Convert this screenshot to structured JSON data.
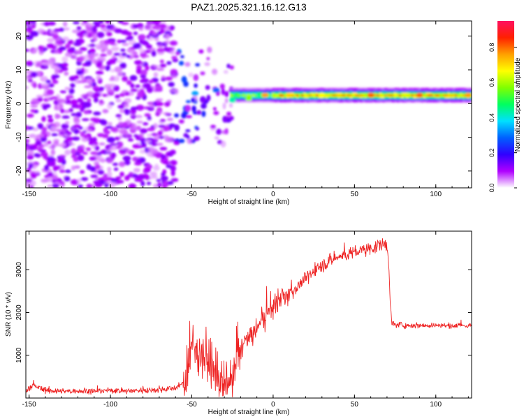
{
  "figure": {
    "title": "PAZ1.2025.321.16.12.G13"
  },
  "chart_data": [
    {
      "type": "heatmap",
      "panel": "spectrogram",
      "xlabel": "Height of straight line (km)",
      "ylabel": "Frequency (Hz)",
      "xlim": [
        -152,
        122
      ],
      "ylim": [
        -25,
        24.5
      ],
      "xticks": [
        -150,
        -100,
        -50,
        0,
        50,
        100
      ],
      "yticks": [
        -20,
        -10,
        0,
        10,
        20
      ],
      "xtick_labels": [
        "-150",
        "-100",
        "-50",
        "0",
        "50",
        "100"
      ],
      "ytick_labels": [
        "-20",
        "-10",
        "0",
        "10",
        "20"
      ],
      "colorbar": {
        "label": "Normalized spectral amplitude",
        "range": [
          0,
          0.95
        ],
        "ticks": [
          0.0,
          0.2,
          0.4,
          0.6,
          0.8
        ],
        "tick_labels": [
          "0.0",
          "0.2",
          "0.4",
          "0.6",
          "0.8"
        ],
        "colormap": [
          "#ffffff",
          "#b000ff",
          "#3000ff",
          "#0060ff",
          "#00e0ff",
          "#00ff60",
          "#80ff00",
          "#ffff00",
          "#ffa000",
          "#ff2000",
          "#ff1060"
        ]
      },
      "features": [
        {
          "name": "noise",
          "x_range": [
            -152,
            -60
          ],
          "freq_range": [
            -25,
            24.5
          ],
          "amplitude": 0.12
        },
        {
          "name": "transition",
          "x_range": [
            -60,
            -25
          ],
          "freq_range": [
            -12,
            16
          ],
          "amplitude": 0.25
        },
        {
          "name": "carrier",
          "x_range": [
            -25,
            122
          ],
          "freq_center": 2.5,
          "freq_width": 1.5,
          "amplitude": 0.9
        }
      ],
      "carrier_points": [
        {
          "x": -48,
          "f": 3,
          "a": 0.35
        },
        {
          "x": -35,
          "f": 4,
          "a": 0.3
        },
        {
          "x": -25,
          "f": 1,
          "a": 0.45
        },
        {
          "x": -15,
          "f": 1.5,
          "a": 0.6
        },
        {
          "x": -5,
          "f": 2.5,
          "a": 0.8
        },
        {
          "x": 10,
          "f": 2.5,
          "a": 0.75
        },
        {
          "x": 30,
          "f": 2.5,
          "a": 0.7
        },
        {
          "x": 60,
          "f": 2.5,
          "a": 0.85
        },
        {
          "x": 90,
          "f": 2.5,
          "a": 0.85
        },
        {
          "x": 120,
          "f": 2.5,
          "a": 0.8
        }
      ]
    },
    {
      "type": "line",
      "panel": "snr",
      "xlabel": "Height of straight line (km)",
      "ylabel": "SNR (10 * v/v)",
      "xlim": [
        -152,
        122
      ],
      "ylim": [
        0,
        3900
      ],
      "xticks": [
        -150,
        -100,
        -50,
        0,
        50,
        100
      ],
      "yticks": [
        1000,
        2000,
        3000
      ],
      "xtick_labels": [
        "-150",
        "-100",
        "-50",
        "0",
        "50",
        "100"
      ],
      "ytick_labels": [
        "1000",
        "2000",
        "3000"
      ],
      "color": "#ee2222",
      "series": [
        {
          "name": "SNR",
          "x": [
            -152,
            -148,
            -140,
            -130,
            -120,
            -110,
            -100,
            -90,
            -80,
            -70,
            -60,
            -55,
            -52,
            -50,
            -45,
            -40,
            -35,
            -30,
            -25,
            -22,
            -20,
            -15,
            -10,
            -5,
            0,
            5,
            10,
            15,
            20,
            25,
            30,
            35,
            40,
            45,
            50,
            55,
            60,
            65,
            70,
            71,
            72,
            73,
            75,
            80,
            90,
            100,
            110,
            122
          ],
          "y": [
            150,
            300,
            180,
            150,
            170,
            160,
            180,
            170,
            180,
            200,
            230,
            350,
            700,
            1200,
            1100,
            900,
            500,
            250,
            300,
            900,
            1200,
            1400,
            1600,
            1900,
            2150,
            2300,
            2450,
            2600,
            2800,
            2950,
            3100,
            3200,
            3300,
            3350,
            3400,
            3450,
            3500,
            3550,
            3600,
            3200,
            2200,
            1750,
            1720,
            1700,
            1700,
            1700,
            1680,
            1700
          ]
        }
      ],
      "noise_amplitude": [
        {
          "x_range": [
            -152,
            -55
          ],
          "amp": 90
        },
        {
          "x_range": [
            -55,
            -20
          ],
          "amp": 700
        },
        {
          "x_range": [
            -20,
            10
          ],
          "amp": 350
        },
        {
          "x_range": [
            10,
            72
          ],
          "amp": 200
        },
        {
          "x_range": [
            72,
            122
          ],
          "amp": 90
        }
      ]
    }
  ]
}
